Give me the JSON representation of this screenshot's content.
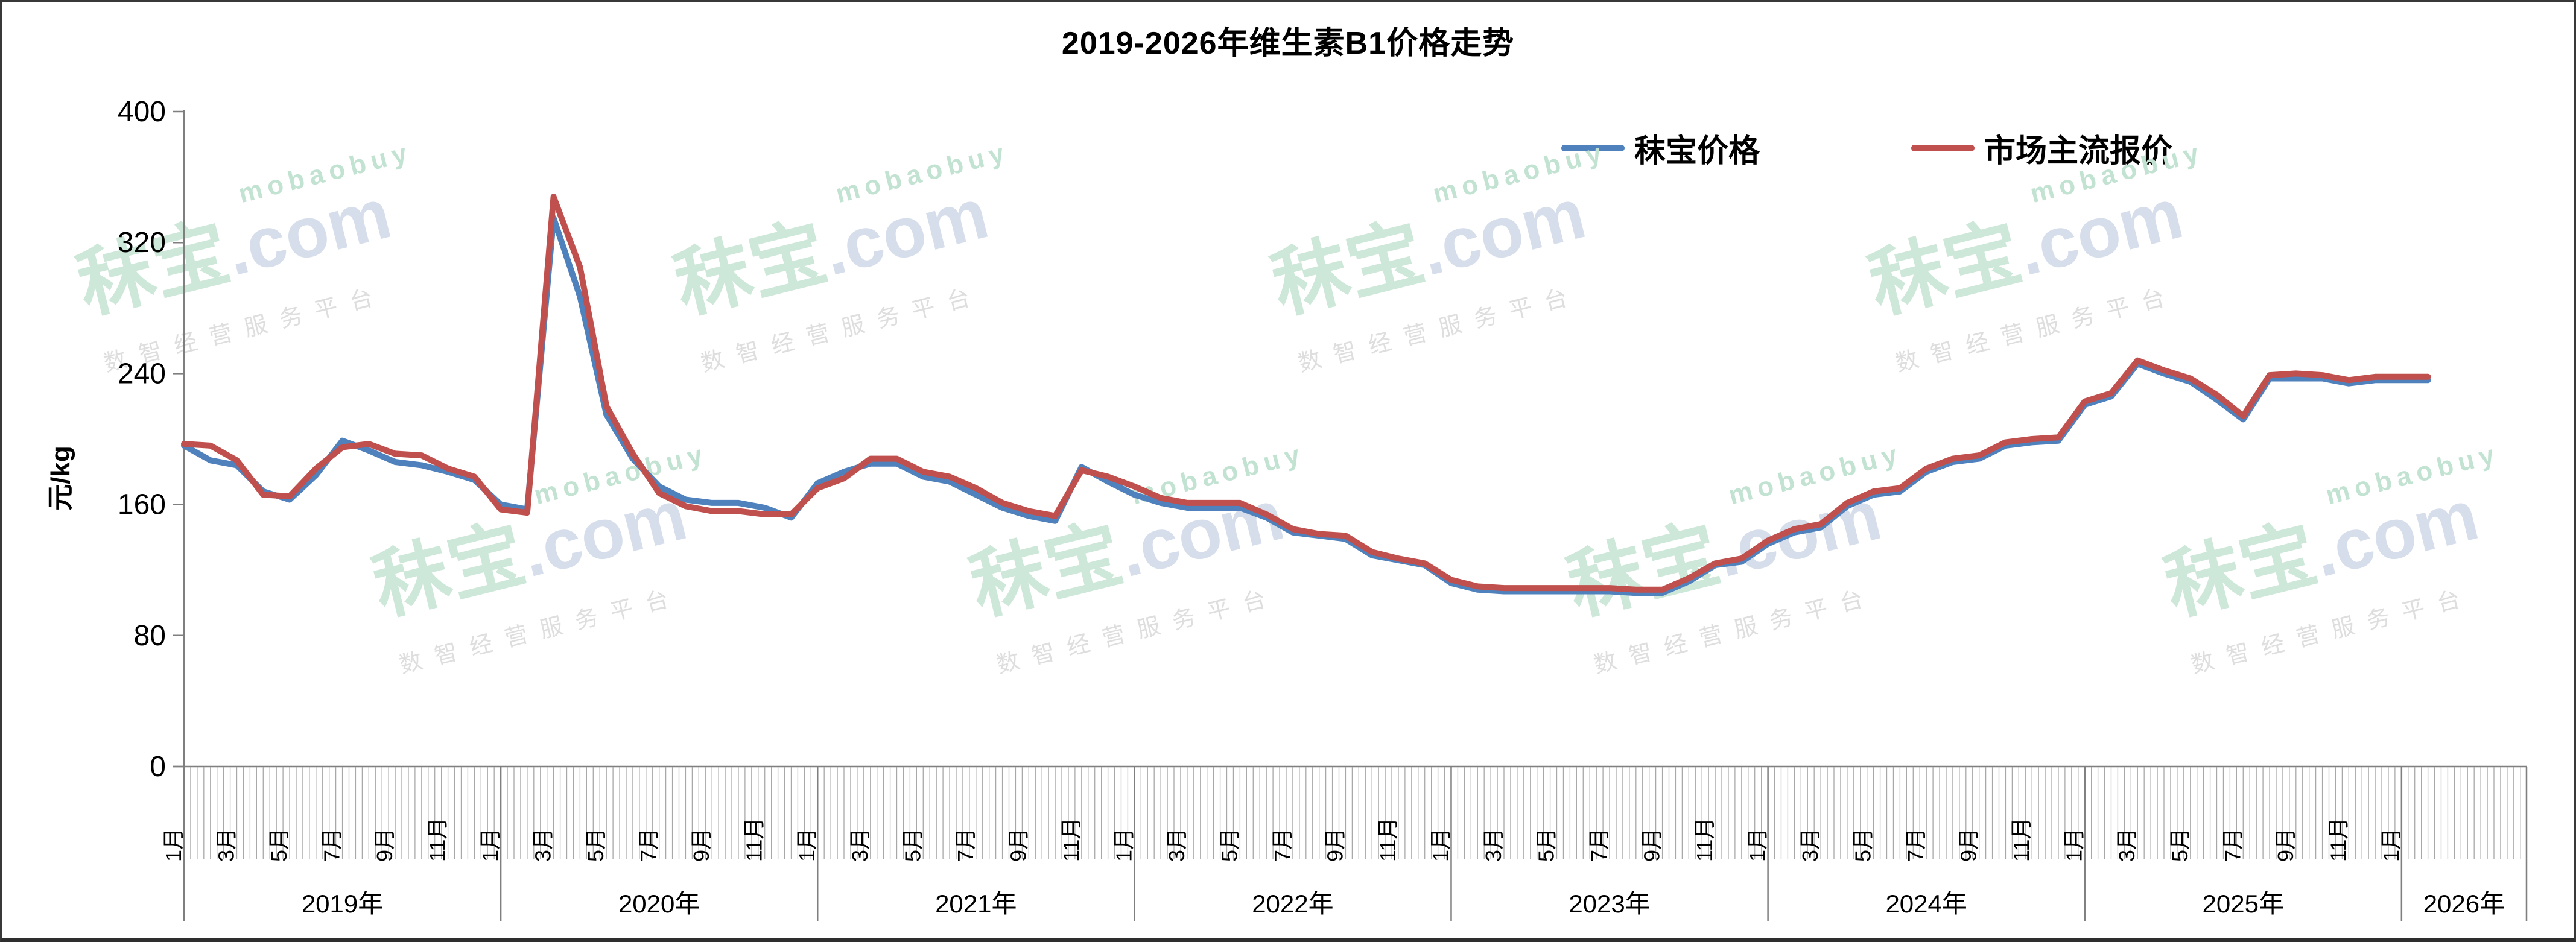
{
  "title": "2019-2026年维生素B1价格走势",
  "y_axis": {
    "unit_label": "元/kg",
    "ticks": [
      0,
      80,
      160,
      240,
      320,
      400
    ],
    "max": 400
  },
  "x_axis": {
    "month_labels": [
      "1月",
      "3月",
      "5月",
      "7月",
      "9月",
      "11月"
    ],
    "year_labels": [
      "2019年",
      "2020年",
      "2021年",
      "2022年",
      "2023年",
      "2024年",
      "2025年",
      "2026年"
    ]
  },
  "legend": {
    "items": [
      {
        "label": "秣宝价格",
        "color": "#4f81bd"
      },
      {
        "label": "市场主流报价",
        "color": "#c0504d"
      }
    ]
  },
  "watermark": {
    "latin": "mobaobuy",
    "brand": "秣宝",
    "domain": ".com",
    "tagline": "数智经营服务平台",
    "brand_color": "#cde7d8",
    "latin_color": "#c2e2d2",
    "domain_color": "#d6deeb",
    "tagline_color": "#dedede"
  },
  "chart_data": {
    "type": "line",
    "title": "2019-2026年维生素B1价格走势",
    "ylabel": "元/kg",
    "ylim": [
      0,
      400
    ],
    "x_start": "2019-01",
    "x_end": "2026-02",
    "x_interval": "monthly",
    "grid": false,
    "legend_position": "top-right",
    "categories_years": [
      2019,
      2020,
      2021,
      2022,
      2023,
      2024,
      2025,
      2026
    ],
    "series": [
      {
        "name": "秣宝价格",
        "color": "#4f81bd",
        "values": [
          196,
          187,
          184,
          168,
          163,
          178,
          199,
          193,
          186,
          184,
          180,
          175,
          160,
          157,
          335,
          287,
          215,
          188,
          171,
          163,
          161,
          161,
          158,
          152,
          173,
          180,
          185,
          185,
          177,
          174,
          166,
          158,
          153,
          150,
          183,
          174,
          166,
          161,
          158,
          158,
          158,
          152,
          143,
          141,
          139,
          129,
          126,
          123,
          112,
          108,
          107,
          107,
          107,
          107,
          107,
          106,
          106,
          113,
          123,
          125,
          136,
          143,
          146,
          159,
          166,
          168,
          180,
          186,
          188,
          196,
          198,
          199,
          221,
          226,
          246,
          240,
          235,
          224,
          212,
          237,
          237,
          237,
          234,
          236,
          236,
          236
        ]
      },
      {
        "name": "市场主流报价",
        "color": "#c0504d",
        "values": [
          197,
          196,
          187,
          166,
          165,
          182,
          195,
          197,
          191,
          190,
          182,
          177,
          157,
          155,
          348,
          305,
          220,
          191,
          167,
          159,
          156,
          156,
          154,
          154,
          170,
          176,
          188,
          188,
          180,
          177,
          170,
          161,
          156,
          153,
          181,
          177,
          171,
          164,
          161,
          161,
          161,
          154,
          145,
          142,
          141,
          131,
          127,
          124,
          114,
          110,
          109,
          109,
          109,
          109,
          109,
          108,
          108,
          115,
          124,
          127,
          138,
          145,
          148,
          161,
          168,
          170,
          182,
          188,
          190,
          198,
          200,
          201,
          223,
          228,
          248,
          242,
          237,
          227,
          214,
          239,
          240,
          239,
          236,
          238,
          238,
          238
        ]
      }
    ]
  }
}
